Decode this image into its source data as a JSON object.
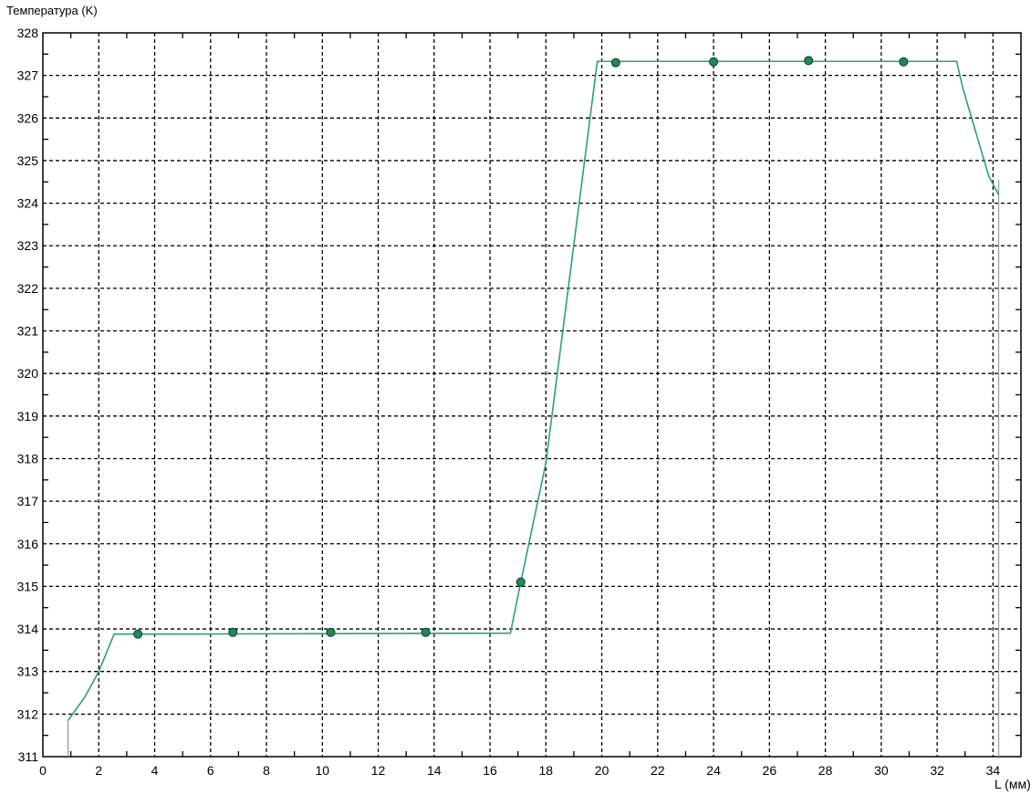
{
  "chart_data": {
    "type": "line",
    "title": "",
    "ylabel": "Температура (K)",
    "xlabel": "L (мм)",
    "xlim": [
      0,
      35
    ],
    "ylim": [
      311,
      328
    ],
    "x_ticks": [
      0,
      2,
      4,
      6,
      8,
      10,
      12,
      14,
      16,
      18,
      20,
      22,
      24,
      26,
      28,
      30,
      32,
      34
    ],
    "y_ticks": [
      311,
      312,
      313,
      314,
      315,
      316,
      317,
      318,
      319,
      320,
      321,
      322,
      323,
      324,
      325,
      326,
      327,
      328
    ],
    "grid": true,
    "colors": {
      "line": "#2e9e78",
      "marker": "#1f8a55",
      "marker_edge": "#0b3d22",
      "boundary": "#9a9a9a",
      "grid": "#000000"
    },
    "series": [
      {
        "x": [
          0.9,
          1.5,
          2.0,
          2.55,
          4.8,
          16.73,
          17.1,
          18.0,
          19.84,
          32.7,
          32.92,
          33.85,
          34.2
        ],
        "y": [
          311.85,
          312.4,
          313.0,
          313.88,
          313.88,
          313.9,
          315.1,
          317.9,
          327.33,
          327.33,
          326.7,
          324.63,
          324.2
        ]
      }
    ],
    "markers": {
      "x": [
        3.4,
        6.8,
        10.3,
        13.7,
        17.1,
        20.5,
        24.0,
        27.4,
        30.8
      ],
      "y": [
        313.88,
        313.92,
        313.92,
        313.92,
        315.1,
        327.3,
        327.32,
        327.35,
        327.32
      ]
    },
    "boundaries": [
      {
        "x": 0.9,
        "y": [
          311,
          311.85
        ]
      },
      {
        "x": 34.2,
        "y": [
          311,
          324.55
        ]
      }
    ]
  }
}
